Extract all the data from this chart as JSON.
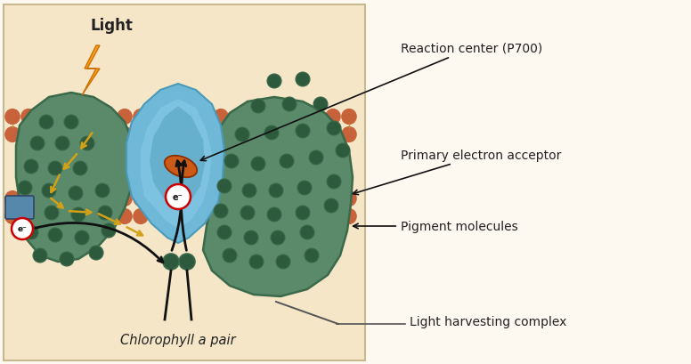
{
  "bg_color": "#fef9f0",
  "diagram_bg": "#f5e6c8",
  "membrane_lipid_color": "#c8623a",
  "membrane_tail_color": "#b89a40",
  "protein_green": "#5a8a6a",
  "protein_green_dark": "#3a6a4a",
  "blue_center": "#70b8d8",
  "blue_center_dark": "#4a9ab8",
  "blue_center_inner": "#88cce8",
  "pigment_dark_green": "#2d5a3d",
  "reaction_center_orange": "#cc5a18",
  "plastocyanin_blue": "#5588aa",
  "arrow_color": "#d4a017",
  "black_arrow_color": "#111111",
  "label_color": "#222222",
  "labels": {
    "light": "Light",
    "reaction_center": "Reaction center (P700)",
    "primary_acceptor": "Primary electron acceptor",
    "pigment": "Pigment molecules",
    "chlorophyll": "Chlorophyll a pair",
    "light_harvesting": "Light harvesting complex"
  },
  "figsize": [
    7.76,
    4.1
  ],
  "dpi": 100
}
